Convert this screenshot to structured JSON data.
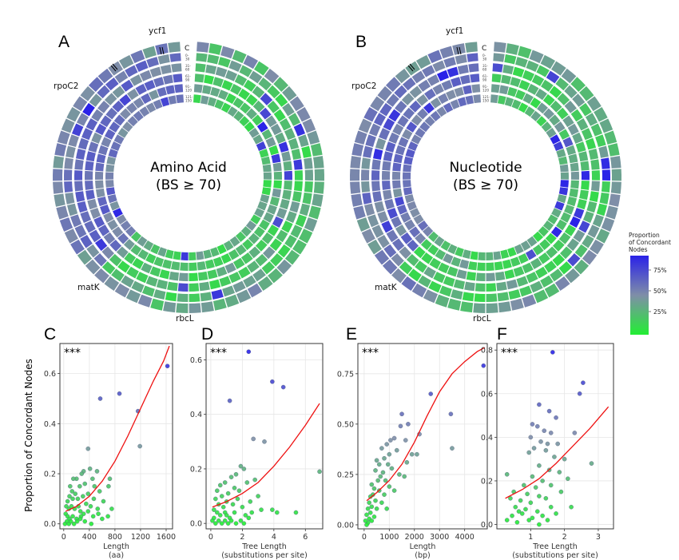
{
  "colors": {
    "low": "#22ee33",
    "mid": "#7f8ea8",
    "high": "#2a22e8",
    "fit": "#ee1111",
    "panel_bg": "#ffffff",
    "grid": "#e6e6e6"
  },
  "circles": {
    "A": {
      "label": "A",
      "center_line1": "Amino Acid",
      "center_line2": "(BS ≥ 70)",
      "outer_ring_label": "C",
      "ring_labels": [
        "0-\n30",
        "31-\n60",
        "61-\n90",
        "91-\n120",
        "121-\n150"
      ]
    },
    "B": {
      "label": "B",
      "center_line1": "Nucleotide",
      "center_line2": "(BS ≥ 70)",
      "outer_ring_label": "C",
      "ring_labels": [
        "0-\n30",
        "31-\n60",
        "61-\n90",
        "91-\n120",
        "121-\n150"
      ]
    },
    "gene_labels": [
      "ycf1",
      "rpoC2",
      "matK",
      "rbcL"
    ]
  },
  "legend": {
    "title_lines": [
      "Proportion",
      "of Concordant",
      "Nodes"
    ],
    "ticks": [
      "75%",
      "50%",
      "25%"
    ]
  },
  "ylabel": "Proportion of Concordant Nodes",
  "chart_data": [
    {
      "panel": "C",
      "type": "scatter",
      "significance": "***",
      "xlabel_lines": [
        "Length",
        "(aa)"
      ],
      "xlim": [
        -60,
        1700
      ],
      "ylim": [
        -0.02,
        0.72
      ],
      "xticks": [
        0,
        400,
        800,
        1200,
        1600
      ],
      "yticks": [
        0.0,
        0.2,
        0.4,
        0.6
      ],
      "ytick_labels": [
        "0.0",
        "0.2",
        "0.4",
        "0.6"
      ],
      "points": [
        [
          1620,
          0.63
        ],
        [
          570,
          0.5
        ],
        [
          870,
          0.52
        ],
        [
          1160,
          0.45
        ],
        [
          1190,
          0.31
        ],
        [
          380,
          0.3
        ],
        [
          310,
          0.21
        ],
        [
          410,
          0.22
        ],
        [
          520,
          0.21
        ],
        [
          450,
          0.18
        ],
        [
          280,
          0.2
        ],
        [
          200,
          0.18
        ],
        [
          150,
          0.18
        ],
        [
          100,
          0.15
        ],
        [
          130,
          0.13
        ],
        [
          250,
          0.15
        ],
        [
          330,
          0.16
        ],
        [
          480,
          0.15
        ],
        [
          560,
          0.13
        ],
        [
          700,
          0.15
        ],
        [
          720,
          0.18
        ],
        [
          300,
          0.11
        ],
        [
          220,
          0.1
        ],
        [
          180,
          0.12
        ],
        [
          140,
          0.1
        ],
        [
          90,
          0.11
        ],
        [
          60,
          0.09
        ],
        [
          40,
          0.07
        ],
        [
          80,
          0.06
        ],
        [
          120,
          0.07
        ],
        [
          170,
          0.06
        ],
        [
          230,
          0.07
        ],
        [
          350,
          0.08
        ],
        [
          420,
          0.07
        ],
        [
          530,
          0.06
        ],
        [
          620,
          0.09
        ],
        [
          260,
          0.05
        ],
        [
          310,
          0.04
        ],
        [
          380,
          0.05
        ],
        [
          460,
          0.03
        ],
        [
          540,
          0.04
        ],
        [
          30,
          0.04
        ],
        [
          60,
          0.03
        ],
        [
          90,
          0.02
        ],
        [
          140,
          0.03
        ],
        [
          200,
          0.02
        ],
        [
          270,
          0.03
        ],
        [
          330,
          0.01
        ],
        [
          20,
          0.0
        ],
        [
          50,
          0.01
        ],
        [
          80,
          0.0
        ],
        [
          110,
          0.01
        ],
        [
          160,
          0.0
        ],
        [
          210,
          0.01
        ],
        [
          260,
          0.02
        ],
        [
          430,
          0.0
        ],
        [
          600,
          0.02
        ],
        [
          690,
          0.03
        ],
        [
          750,
          0.06
        ],
        [
          380,
          0.12
        ],
        [
          470,
          0.1
        ]
      ],
      "fit": [
        [
          30,
          0.05
        ],
        [
          200,
          0.07
        ],
        [
          400,
          0.11
        ],
        [
          600,
          0.17
        ],
        [
          800,
          0.25
        ],
        [
          1000,
          0.35
        ],
        [
          1200,
          0.46
        ],
        [
          1400,
          0.57
        ],
        [
          1560,
          0.65
        ],
        [
          1650,
          0.71
        ]
      ]
    },
    {
      "panel": "D",
      "type": "scatter",
      "significance": "***",
      "xlabel_lines": [
        "Tree Length",
        "(substitutions per site)"
      ],
      "xlim": [
        -0.3,
        7.1
      ],
      "ylim": [
        -0.02,
        0.66
      ],
      "xticks": [
        0,
        2,
        4,
        6
      ],
      "yticks": [
        0.0,
        0.2,
        0.4,
        0.6
      ],
      "ytick_labels": [
        "0.0",
        "0.2",
        "0.4",
        "0.6"
      ],
      "points": [
        [
          2.4,
          0.63
        ],
        [
          3.9,
          0.52
        ],
        [
          4.6,
          0.5
        ],
        [
          1.2,
          0.45
        ],
        [
          2.7,
          0.31
        ],
        [
          3.4,
          0.3
        ],
        [
          1.9,
          0.21
        ],
        [
          6.9,
          0.19
        ],
        [
          2.1,
          0.2
        ],
        [
          1.6,
          0.18
        ],
        [
          1.3,
          0.17
        ],
        [
          0.9,
          0.15
        ],
        [
          0.6,
          0.14
        ],
        [
          0.4,
          0.12
        ],
        [
          0.7,
          0.1
        ],
        [
          1.1,
          0.11
        ],
        [
          1.5,
          0.13
        ],
        [
          1.8,
          0.12
        ],
        [
          2.3,
          0.15
        ],
        [
          2.8,
          0.16
        ],
        [
          3.0,
          0.1
        ],
        [
          0.3,
          0.09
        ],
        [
          0.5,
          0.07
        ],
        [
          0.8,
          0.06
        ],
        [
          1.0,
          0.08
        ],
        [
          1.4,
          0.07
        ],
        [
          1.7,
          0.09
        ],
        [
          2.0,
          0.06
        ],
        [
          2.5,
          0.08
        ],
        [
          3.2,
          0.05
        ],
        [
          0.2,
          0.05
        ],
        [
          0.4,
          0.04
        ],
        [
          0.6,
          0.03
        ],
        [
          0.9,
          0.04
        ],
        [
          1.2,
          0.02
        ],
        [
          1.5,
          0.04
        ],
        [
          2.2,
          0.03
        ],
        [
          2.6,
          0.04
        ],
        [
          3.9,
          0.05
        ],
        [
          5.4,
          0.04
        ],
        [
          0.1,
          0.01
        ],
        [
          0.3,
          0.0
        ],
        [
          0.5,
          0.01
        ],
        [
          0.7,
          0.0
        ],
        [
          0.9,
          0.01
        ],
        [
          1.1,
          0.0
        ],
        [
          1.3,
          0.01
        ],
        [
          1.6,
          0.0
        ],
        [
          1.9,
          0.01
        ],
        [
          2.1,
          0.0
        ],
        [
          2.4,
          0.02
        ],
        [
          0.2,
          0.02
        ],
        [
          1.0,
          0.03
        ],
        [
          4.2,
          0.04
        ]
      ],
      "fit": [
        [
          0.1,
          0.06
        ],
        [
          1,
          0.08
        ],
        [
          2,
          0.11
        ],
        [
          3,
          0.15
        ],
        [
          4,
          0.21
        ],
        [
          5,
          0.28
        ],
        [
          6,
          0.36
        ],
        [
          6.9,
          0.44
        ]
      ]
    },
    {
      "panel": "E",
      "type": "scatter",
      "significance": "***",
      "xlabel_lines": [
        "Length",
        "(bp)"
      ],
      "xlim": [
        -250,
        4900
      ],
      "ylim": [
        -0.02,
        0.9
      ],
      "xticks": [
        0,
        1000,
        2000,
        3000,
        4000
      ],
      "yticks": [
        0.0,
        0.25,
        0.5,
        0.75
      ],
      "ytick_labels": [
        "0.00",
        "0.25",
        "0.50",
        "0.75"
      ],
      "points": [
        [
          4750,
          0.79
        ],
        [
          2650,
          0.65
        ],
        [
          3450,
          0.55
        ],
        [
          1500,
          0.55
        ],
        [
          1750,
          0.5
        ],
        [
          1450,
          0.49
        ],
        [
          2200,
          0.45
        ],
        [
          3500,
          0.38
        ],
        [
          1200,
          0.43
        ],
        [
          1050,
          0.42
        ],
        [
          1650,
          0.42
        ],
        [
          900,
          0.4
        ],
        [
          1300,
          0.37
        ],
        [
          1900,
          0.35
        ],
        [
          700,
          0.38
        ],
        [
          1000,
          0.35
        ],
        [
          800,
          0.33
        ],
        [
          600,
          0.3
        ],
        [
          500,
          0.32
        ],
        [
          950,
          0.3
        ],
        [
          1100,
          0.28
        ],
        [
          750,
          0.26
        ],
        [
          450,
          0.27
        ],
        [
          650,
          0.24
        ],
        [
          550,
          0.22
        ],
        [
          850,
          0.22
        ],
        [
          1400,
          0.25
        ],
        [
          300,
          0.2
        ],
        [
          400,
          0.18
        ],
        [
          600,
          0.17
        ],
        [
          350,
          0.15
        ],
        [
          250,
          0.14
        ],
        [
          450,
          0.12
        ],
        [
          200,
          0.11
        ],
        [
          300,
          0.09
        ],
        [
          150,
          0.08
        ],
        [
          250,
          0.06
        ],
        [
          100,
          0.05
        ],
        [
          200,
          0.03
        ],
        [
          300,
          0.02
        ],
        [
          150,
          0.01
        ],
        [
          400,
          0.04
        ],
        [
          500,
          0.08
        ],
        [
          700,
          0.11
        ],
        [
          800,
          0.15
        ],
        [
          1200,
          0.17
        ],
        [
          1600,
          0.24
        ],
        [
          1000,
          0.19
        ],
        [
          1700,
          0.31
        ],
        [
          2100,
          0.35
        ],
        [
          900,
          0.08
        ],
        [
          100,
          0.0
        ],
        [
          50,
          0.02
        ]
      ],
      "fit": [
        [
          100,
          0.12
        ],
        [
          500,
          0.16
        ],
        [
          1000,
          0.22
        ],
        [
          1500,
          0.3
        ],
        [
          2000,
          0.41
        ],
        [
          2500,
          0.54
        ],
        [
          3000,
          0.66
        ],
        [
          3500,
          0.75
        ],
        [
          4000,
          0.81
        ],
        [
          4500,
          0.86
        ],
        [
          4800,
          0.88
        ]
      ]
    },
    {
      "panel": "F",
      "type": "scatter",
      "significance": "***",
      "xlabel_lines": [
        "Tree Length",
        "(substitutions per site)"
      ],
      "xlim": [
        0.0,
        3.45
      ],
      "ylim": [
        -0.02,
        0.83
      ],
      "xticks": [
        1,
        2,
        3
      ],
      "yticks": [
        0.0,
        0.2,
        0.4,
        0.6,
        0.8
      ],
      "ytick_labels": [
        "0.0",
        "0.2",
        "0.4",
        "0.6",
        "0.8"
      ],
      "points": [
        [
          1.65,
          0.79
        ],
        [
          2.55,
          0.65
        ],
        [
          2.45,
          0.6
        ],
        [
          1.25,
          0.55
        ],
        [
          1.55,
          0.52
        ],
        [
          1.75,
          0.49
        ],
        [
          1.05,
          0.46
        ],
        [
          1.2,
          0.45
        ],
        [
          1.4,
          0.43
        ],
        [
          1.6,
          0.42
        ],
        [
          2.3,
          0.42
        ],
        [
          1.0,
          0.4
        ],
        [
          1.3,
          0.38
        ],
        [
          1.5,
          0.37
        ],
        [
          1.8,
          0.37
        ],
        [
          1.1,
          0.35
        ],
        [
          1.45,
          0.34
        ],
        [
          0.95,
          0.33
        ],
        [
          1.7,
          0.31
        ],
        [
          2.0,
          0.3
        ],
        [
          2.8,
          0.28
        ],
        [
          1.25,
          0.27
        ],
        [
          1.55,
          0.25
        ],
        [
          0.3,
          0.23
        ],
        [
          1.05,
          0.22
        ],
        [
          1.85,
          0.24
        ],
        [
          2.1,
          0.21
        ],
        [
          1.35,
          0.2
        ],
        [
          0.8,
          0.18
        ],
        [
          1.15,
          0.17
        ],
        [
          1.6,
          0.18
        ],
        [
          0.5,
          0.15
        ],
        [
          0.9,
          0.14
        ],
        [
          1.25,
          0.13
        ],
        [
          0.4,
          0.12
        ],
        [
          0.7,
          0.11
        ],
        [
          1.0,
          0.1
        ],
        [
          1.45,
          0.12
        ],
        [
          1.9,
          0.15
        ],
        [
          0.55,
          0.08
        ],
        [
          0.85,
          0.07
        ],
        [
          1.2,
          0.06
        ],
        [
          1.6,
          0.08
        ],
        [
          2.2,
          0.08
        ],
        [
          0.45,
          0.04
        ],
        [
          0.75,
          0.05
        ],
        [
          1.05,
          0.03
        ],
        [
          1.35,
          0.04
        ],
        [
          1.75,
          0.05
        ],
        [
          0.3,
          0.02
        ],
        [
          0.6,
          0.01
        ],
        [
          0.95,
          0.02
        ],
        [
          1.25,
          0.0
        ],
        [
          1.5,
          0.02
        ],
        [
          0.65,
          0.06
        ]
      ],
      "fit": [
        [
          0.25,
          0.12
        ],
        [
          0.75,
          0.16
        ],
        [
          1.25,
          0.21
        ],
        [
          1.75,
          0.28
        ],
        [
          2.25,
          0.36
        ],
        [
          2.75,
          0.44
        ],
        [
          3.3,
          0.54
        ]
      ]
    }
  ]
}
